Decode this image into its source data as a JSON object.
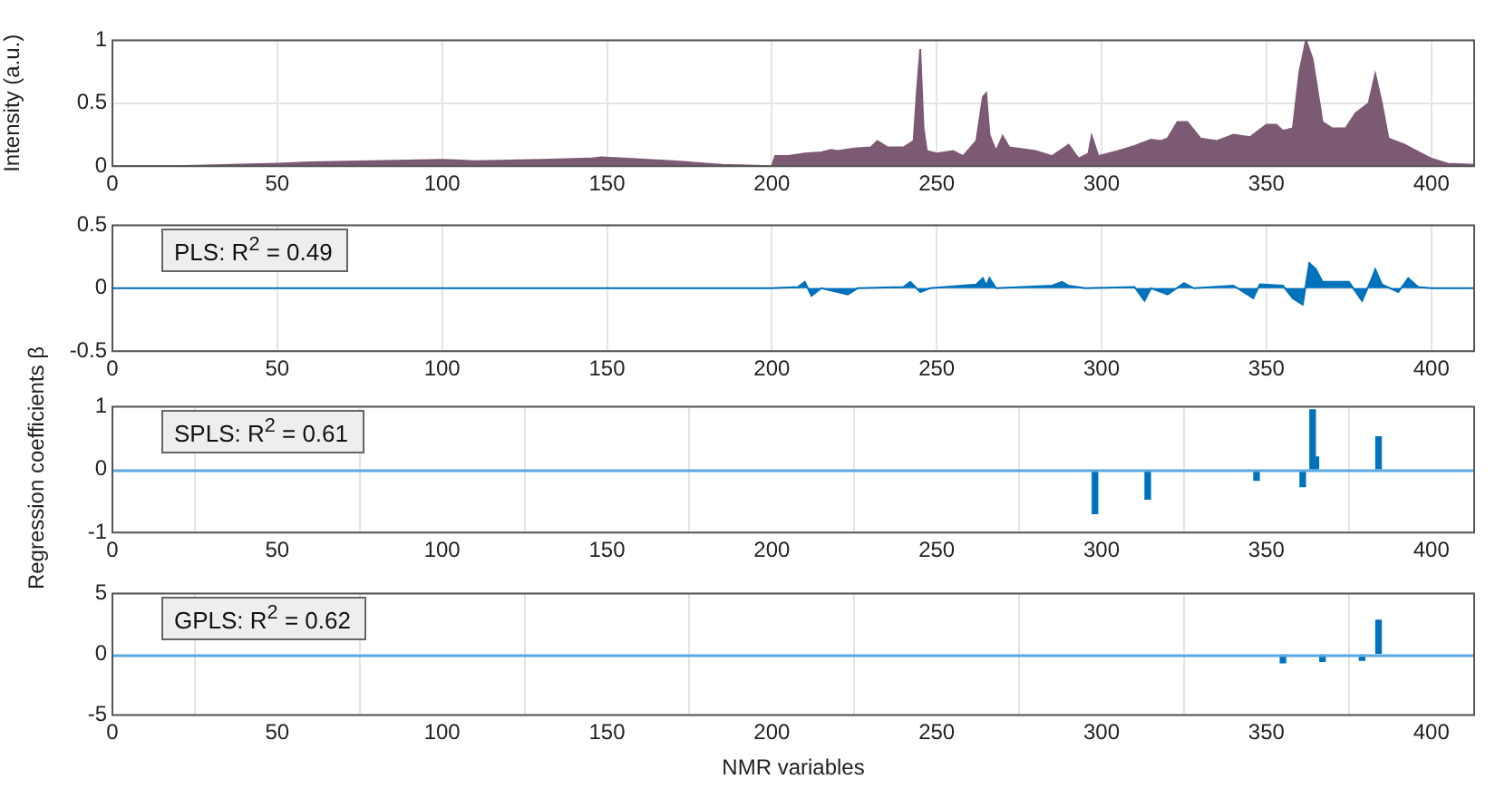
{
  "chart_data": [
    {
      "type": "area",
      "ylabel": "Intensity (a.u.)",
      "xlim": [
        0,
        413
      ],
      "xticks": [
        0,
        50,
        100,
        150,
        200,
        250,
        300,
        350,
        400
      ],
      "ylim": [
        0,
        1
      ],
      "yticks": [
        0,
        0.5,
        1
      ],
      "grid": true,
      "series": [
        {
          "color": "#7d5a73",
          "x": [
            0,
            20,
            50,
            60,
            100,
            110,
            130,
            145,
            148,
            155,
            170,
            185,
            200,
            201,
            205,
            210,
            215,
            218,
            220,
            225,
            230,
            232,
            235,
            240,
            243,
            244,
            245,
            246,
            247,
            250,
            255,
            258,
            262,
            264,
            265,
            266,
            268,
            270,
            272,
            280,
            285,
            290,
            293,
            296,
            297,
            299,
            305,
            310,
            315,
            318,
            320,
            323,
            326,
            330,
            335,
            340,
            345,
            350,
            353,
            355,
            358,
            360,
            362,
            364,
            367,
            370,
            374,
            377,
            381,
            383,
            385,
            387,
            392,
            397,
            400,
            405,
            413
          ],
          "values": [
            0,
            0,
            0.02,
            0.03,
            0.05,
            0.04,
            0.05,
            0.06,
            0.07,
            0.06,
            0.04,
            0.01,
            0,
            0.08,
            0.08,
            0.1,
            0.11,
            0.13,
            0.12,
            0.14,
            0.15,
            0.2,
            0.15,
            0.15,
            0.2,
            0.6,
            0.93,
            0.3,
            0.12,
            0.1,
            0.12,
            0.08,
            0.2,
            0.55,
            0.58,
            0.25,
            0.12,
            0.24,
            0.15,
            0.12,
            0.08,
            0.17,
            0.06,
            0.1,
            0.24,
            0.08,
            0.12,
            0.16,
            0.21,
            0.2,
            0.22,
            0.35,
            0.35,
            0.22,
            0.2,
            0.25,
            0.23,
            0.33,
            0.33,
            0.28,
            0.3,
            0.75,
            1.0,
            0.85,
            0.35,
            0.3,
            0.3,
            0.42,
            0.5,
            0.73,
            0.5,
            0.22,
            0.17,
            0.1,
            0.06,
            0.02,
            0.01
          ]
        }
      ]
    },
    {
      "type": "area",
      "annotations": [
        "PLS: R$^{2}$ = 0.49"
      ],
      "xlim": [
        0,
        413
      ],
      "xticks": [
        0,
        50,
        100,
        150,
        200,
        250,
        300,
        350,
        400
      ],
      "ylim": [
        -0.5,
        0.5
      ],
      "yticks": [
        -0.5,
        0,
        0.5
      ],
      "grid": true,
      "series": [
        {
          "color": "#0072bd",
          "x": [
            0,
            200,
            208,
            210,
            212,
            215,
            220,
            223,
            226,
            240,
            242,
            245,
            248,
            262,
            264,
            265,
            266,
            268,
            285,
            288,
            290,
            295,
            310,
            313,
            315,
            320,
            325,
            328,
            340,
            346,
            348,
            355,
            358,
            361,
            363,
            365,
            367,
            375,
            379,
            382,
            383,
            385,
            390,
            393,
            396,
            400,
            413
          ],
          "values": [
            0,
            0,
            0.01,
            0.05,
            -0.06,
            0,
            -0.03,
            -0.05,
            0,
            0.01,
            0.05,
            -0.03,
            0,
            0.03,
            0.08,
            0.02,
            0.08,
            0,
            0.02,
            0.05,
            0.02,
            0,
            0.01,
            -0.1,
            0,
            -0.05,
            0.04,
            0,
            0.02,
            -0.08,
            0.03,
            0.02,
            -0.08,
            -0.13,
            0.2,
            0.15,
            0.05,
            0.05,
            -0.1,
            0.08,
            0.15,
            0.03,
            -0.03,
            0.08,
            0.01,
            0,
            0
          ]
        }
      ]
    },
    {
      "type": "bar",
      "ylabel": "Regression coefficients β",
      "annotations": [
        "SPLS: R$^{2}$ = 0.61"
      ],
      "xlim": [
        0,
        413
      ],
      "xticks": [
        0,
        50,
        100,
        150,
        200,
        250,
        300,
        350,
        400
      ],
      "ylim": [
        -1,
        1
      ],
      "yticks": [
        -1,
        0,
        1
      ],
      "grid": true,
      "ref_lines": [
        {
          "axis": "y",
          "value": 0,
          "color": "#5aa9e0"
        }
      ],
      "series": [
        {
          "color": "#0072bd",
          "x": [
            298,
            314,
            347,
            361,
            364,
            365,
            384
          ],
          "values": [
            -0.7,
            -0.47,
            -0.17,
            -0.27,
            0.95,
            0.2,
            0.52
          ]
        }
      ]
    },
    {
      "type": "bar",
      "xlabel": "NMR variables",
      "annotations": [
        "GPLS: R$^{2}$ = 0.62"
      ],
      "xlim": [
        0,
        413
      ],
      "xticks": [
        0,
        50,
        100,
        150,
        200,
        250,
        300,
        350,
        400
      ],
      "ylim": [
        -5,
        5
      ],
      "yticks": [
        -5,
        0,
        5
      ],
      "grid": true,
      "ref_lines": [
        {
          "axis": "y",
          "value": 0,
          "color": "#5aa9e0"
        }
      ],
      "series": [
        {
          "color": "#0072bd",
          "x": [
            355,
            367,
            379,
            384
          ],
          "values": [
            -0.7,
            -0.6,
            -0.5,
            2.8
          ]
        }
      ]
    }
  ]
}
